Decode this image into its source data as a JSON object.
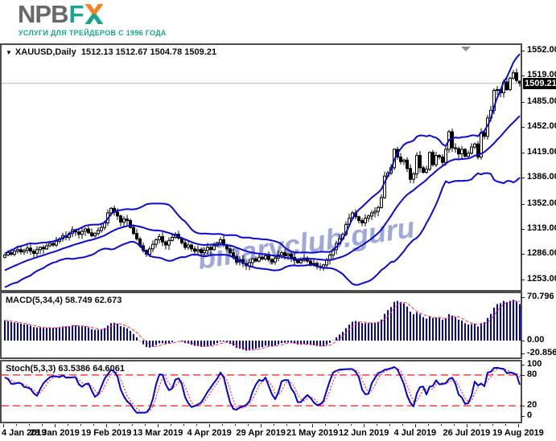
{
  "header": {
    "logo": {
      "gray": "NPB",
      "green": "F",
      "x_letter": "X"
    },
    "tagline": "УСЛУГИ ДЛЯ ТРЕЙДЕРОВ С 1996 ГОДА"
  },
  "main_chart": {
    "symbol": "XAUUSD,Daily",
    "ohlc": "1512.13 1512.67 1504.78 1509.21",
    "last_price_label": "1509.21"
  },
  "macd": {
    "label": "MACD(5,34,4) 58.749 62.673"
  },
  "stoch": {
    "label": "Stoch(5,3,3) 63.5386 64.6061"
  },
  "watermark": "binaryclub.guru",
  "chart_data": {
    "type": "candlestick",
    "symbol": "XAUUSD",
    "timeframe": "Daily",
    "ohlc_display": {
      "open": 1512.13,
      "high": 1512.67,
      "low": 1504.78,
      "close": 1509.21
    },
    "price_axis": [
      "1552.00",
      "1519.00",
      "1485.00",
      "1452.00",
      "1419.00",
      "1386.00",
      "1352.00",
      "1319.00",
      "1286.00",
      "1253.00"
    ],
    "macd_axis": [
      "70.796",
      "0.00",
      "-20.856"
    ],
    "stoch_axis": [
      "100",
      "80",
      "20",
      "0"
    ],
    "stoch_levels": [
      80,
      20
    ],
    "dates": [
      "4 Jan 2019",
      "28 Jan 2019",
      "19 Feb 2019",
      "13 Mar 2019",
      "4 Apr 2019",
      "29 Apr 2019",
      "21 May 2019",
      "12 Jun 2019",
      "4 Jul 2019",
      "26 Jul 2019",
      "19 Aug 2019"
    ],
    "indicators": [
      {
        "name": "Bollinger Bands",
        "params": "20,2"
      },
      {
        "name": "MACD",
        "params": "5,34,4",
        "values": [
          58.749,
          62.673
        ]
      },
      {
        "name": "Stochastic",
        "params": "5,3,3",
        "values": [
          63.5386,
          64.6061
        ]
      }
    ],
    "first_open": 1282,
    "last_candle": [
      1512.13,
      1512.67,
      1504.78,
      1509.21
    ],
    "last_price": 1509.21,
    "closes": [
      1285,
      1288,
      1286,
      1290,
      1292,
      1289,
      1291,
      1294,
      1290,
      1287,
      1292,
      1295,
      1293,
      1297,
      1300,
      1298,
      1303,
      1306,
      1310,
      1308,
      1313,
      1318,
      1315,
      1312,
      1316,
      1319,
      1314,
      1310,
      1313,
      1317,
      1321,
      1327,
      1340,
      1346,
      1341,
      1336,
      1328,
      1332,
      1330,
      1321,
      1313,
      1306,
      1297,
      1291,
      1286,
      1293,
      1299,
      1305,
      1309,
      1302,
      1298,
      1304,
      1308,
      1312,
      1307,
      1301,
      1295,
      1298,
      1293,
      1290,
      1292,
      1288,
      1291,
      1295,
      1292,
      1297,
      1301,
      1305,
      1298,
      1293,
      1288,
      1283,
      1276,
      1279,
      1274,
      1271,
      1275,
      1280,
      1277,
      1282,
      1280,
      1284,
      1279,
      1276,
      1281,
      1285,
      1288,
      1284,
      1286,
      1282,
      1278,
      1275,
      1278,
      1281,
      1277,
      1273,
      1274,
      1270,
      1269,
      1272,
      1278,
      1285,
      1292,
      1300,
      1306,
      1312,
      1325,
      1333,
      1340,
      1335,
      1330,
      1327,
      1333,
      1336,
      1340,
      1342,
      1347,
      1360,
      1388,
      1392,
      1399,
      1423,
      1413,
      1407,
      1409,
      1398,
      1384,
      1391,
      1415,
      1399,
      1393,
      1397,
      1419,
      1403,
      1415,
      1413,
      1406,
      1423,
      1446,
      1425,
      1424,
      1417,
      1423,
      1414,
      1418,
      1426,
      1430,
      1413,
      1445,
      1440,
      1464,
      1474,
      1500,
      1501,
      1497,
      1511,
      1501,
      1516,
      1523,
      1513,
      1509.21
    ],
    "colors": {
      "bands": "#0a0ad0",
      "macd": "#0000cd",
      "signal": "#ff2e2e",
      "stoch": "#0000d0",
      "candle": "#000000",
      "watermark": "#a0a8d8",
      "price_line": "#b4b4b4"
    }
  }
}
